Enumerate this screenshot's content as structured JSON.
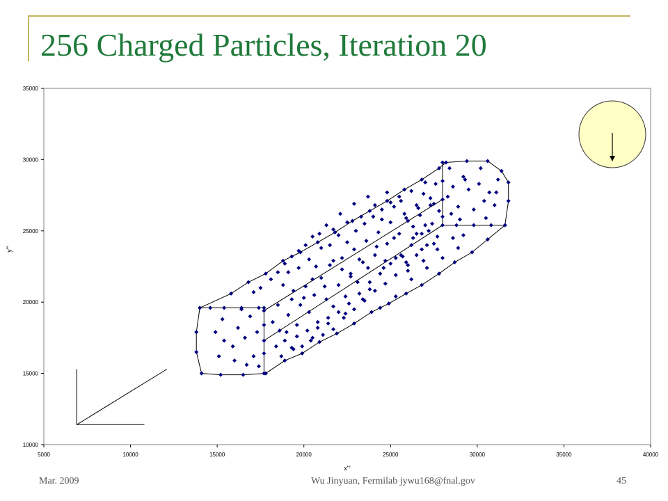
{
  "slide": {
    "title": "256 Charged Particles, Iteration 20",
    "footer_left": "Mar. 2009",
    "footer_center": "Wu Jinyuan, Fermilab jywu168@fnal.gov",
    "footer_right": "45"
  },
  "colors": {
    "title": "#1f7a3a",
    "rule": "#c5b35a",
    "marker": "#000080",
    "inset_fill": "#ffffc6"
  },
  "chart_data": {
    "type": "scatter",
    "xlabel": "x\"'",
    "ylabel": "y\"'",
    "xlim": [
      5000,
      40000
    ],
    "ylim": [
      10000,
      35000
    ],
    "xticks": [
      "5000",
      "10000",
      "15000",
      "20000",
      "25000",
      "30000",
      "35000",
      "40000"
    ],
    "yticks": [
      "10000",
      "15000",
      "20000",
      "25000",
      "30000",
      "35000"
    ],
    "grid": false,
    "legend": "none",
    "marker": "diamond",
    "series": [
      {
        "points": [
          [
            14000,
            19600
          ],
          [
            15800,
            20600
          ],
          [
            16800,
            21400
          ],
          [
            17800,
            22000
          ],
          [
            18800,
            22900
          ],
          [
            19800,
            23500
          ],
          [
            20800,
            24200
          ],
          [
            21800,
            24900
          ],
          [
            22800,
            25700
          ],
          [
            23800,
            26400
          ],
          [
            24800,
            27100
          ],
          [
            25800,
            27900
          ],
          [
            26800,
            28600
          ],
          [
            27800,
            29400
          ],
          [
            28200,
            29800
          ],
          [
            29400,
            29900
          ],
          [
            30600,
            29900
          ],
          [
            31400,
            29200
          ],
          [
            31800,
            28400
          ],
          [
            31800,
            27100
          ],
          [
            31600,
            25400
          ],
          [
            30600,
            24400
          ],
          [
            29700,
            23500
          ],
          [
            28700,
            22800
          ],
          [
            27800,
            22000
          ],
          [
            26800,
            21200
          ],
          [
            25900,
            20600
          ],
          [
            24900,
            19900
          ],
          [
            23900,
            19300
          ],
          [
            22900,
            18500
          ],
          [
            21900,
            17800
          ],
          [
            20900,
            17200
          ],
          [
            19900,
            16400
          ],
          [
            18900,
            15900
          ],
          [
            17800,
            15000
          ],
          [
            16500,
            14900
          ],
          [
            15200,
            14900
          ],
          [
            14100,
            15000
          ],
          [
            13800,
            16500
          ],
          [
            13800,
            17900
          ],
          [
            14000,
            19600
          ],
          [
            14600,
            19600
          ],
          [
            15400,
            19600
          ],
          [
            16400,
            19600
          ],
          [
            17400,
            19600
          ],
          [
            17700,
            19600
          ],
          [
            17700,
            15000
          ],
          [
            17700,
            16400
          ],
          [
            17700,
            17300
          ],
          [
            17700,
            18400
          ],
          [
            17700,
            19400
          ],
          [
            28000,
            29800
          ],
          [
            28000,
            28500
          ],
          [
            28000,
            27200
          ],
          [
            28000,
            26000
          ],
          [
            28000,
            25400
          ],
          [
            28800,
            25400
          ],
          [
            29800,
            25400
          ],
          [
            30800,
            25400
          ],
          [
            31600,
            25400
          ],
          [
            14900,
            17900
          ],
          [
            15300,
            18800
          ],
          [
            15900,
            16900
          ],
          [
            16200,
            18200
          ],
          [
            16600,
            17500
          ],
          [
            16900,
            19000
          ],
          [
            17100,
            16200
          ],
          [
            17300,
            17900
          ],
          [
            15100,
            16200
          ],
          [
            16700,
            15600
          ],
          [
            17400,
            15500
          ],
          [
            16000,
            15900
          ],
          [
            15400,
            17300
          ],
          [
            16400,
            19500
          ],
          [
            18400,
            16900
          ],
          [
            18600,
            18000
          ],
          [
            18900,
            17300
          ],
          [
            19100,
            19100
          ],
          [
            19300,
            20200
          ],
          [
            19600,
            18400
          ],
          [
            19800,
            19800
          ],
          [
            20100,
            21100
          ],
          [
            20300,
            19300
          ],
          [
            20600,
            20500
          ],
          [
            20800,
            18600
          ],
          [
            21000,
            21700
          ],
          [
            21300,
            20200
          ],
          [
            21500,
            22600
          ],
          [
            21700,
            19700
          ],
          [
            22000,
            21200
          ],
          [
            22200,
            23100
          ],
          [
            22400,
            20400
          ],
          [
            22700,
            22000
          ],
          [
            22900,
            23700
          ],
          [
            23100,
            21400
          ],
          [
            23400,
            22800
          ],
          [
            23600,
            24300
          ],
          [
            23800,
            20900
          ],
          [
            24100,
            23300
          ],
          [
            24300,
            24900
          ],
          [
            24600,
            22400
          ],
          [
            24800,
            24100
          ],
          [
            25000,
            25600
          ],
          [
            25300,
            23100
          ],
          [
            25500,
            24800
          ],
          [
            25800,
            26200
          ],
          [
            26000,
            22600
          ],
          [
            26300,
            24500
          ],
          [
            26500,
            26800
          ],
          [
            26800,
            23700
          ],
          [
            27000,
            25400
          ],
          [
            27300,
            27300
          ],
          [
            27500,
            24100
          ],
          [
            27800,
            26400
          ],
          [
            18200,
            18600
          ],
          [
            18500,
            19800
          ],
          [
            18800,
            21200
          ],
          [
            19100,
            22100
          ],
          [
            19400,
            20800
          ],
          [
            19700,
            22400
          ],
          [
            20000,
            20300
          ],
          [
            20300,
            23000
          ],
          [
            20500,
            21600
          ],
          [
            20700,
            22500
          ],
          [
            21000,
            23800
          ],
          [
            21200,
            21100
          ],
          [
            21500,
            24000
          ],
          [
            21700,
            22900
          ],
          [
            22000,
            24700
          ],
          [
            22200,
            22300
          ],
          [
            22500,
            24200
          ],
          [
            22700,
            21800
          ],
          [
            23000,
            25000
          ],
          [
            23200,
            23000
          ],
          [
            23500,
            25500
          ],
          [
            23700,
            22400
          ],
          [
            24000,
            26000
          ],
          [
            24200,
            23900
          ],
          [
            24500,
            26500
          ],
          [
            24700,
            22900
          ],
          [
            25000,
            27000
          ],
          [
            25200,
            24500
          ],
          [
            25500,
            27400
          ],
          [
            25700,
            23200
          ],
          [
            26000,
            25700
          ],
          [
            26200,
            27800
          ],
          [
            26500,
            24800
          ],
          [
            26700,
            26100
          ],
          [
            27000,
            28400
          ],
          [
            27200,
            25000
          ],
          [
            27500,
            26900
          ],
          [
            27700,
            24600
          ],
          [
            18700,
            16200
          ],
          [
            19000,
            17900
          ],
          [
            19300,
            16800
          ],
          [
            19600,
            17600
          ],
          [
            19900,
            16900
          ],
          [
            20200,
            18000
          ],
          [
            20500,
            17500
          ],
          [
            20800,
            18200
          ],
          [
            21100,
            17700
          ],
          [
            21400,
            18900
          ],
          [
            21700,
            18100
          ],
          [
            22000,
            19300
          ],
          [
            22300,
            18900
          ],
          [
            22600,
            19900
          ],
          [
            22900,
            19500
          ],
          [
            23200,
            20600
          ],
          [
            23500,
            20100
          ],
          [
            23800,
            21400
          ],
          [
            24100,
            20800
          ],
          [
            24400,
            22000
          ],
          [
            24700,
            21300
          ],
          [
            25000,
            22700
          ],
          [
            25300,
            21900
          ],
          [
            25600,
            23300
          ],
          [
            25900,
            22800
          ],
          [
            26200,
            24000
          ],
          [
            26500,
            23300
          ],
          [
            26800,
            24800
          ],
          [
            27100,
            24000
          ],
          [
            27400,
            25500
          ],
          [
            28300,
            27400
          ],
          [
            28600,
            28100
          ],
          [
            28900,
            26700
          ],
          [
            29200,
            28800
          ],
          [
            29500,
            27900
          ],
          [
            29800,
            26500
          ],
          [
            30100,
            28300
          ],
          [
            30400,
            27100
          ],
          [
            30700,
            27700
          ],
          [
            31000,
            26800
          ],
          [
            31200,
            28600
          ],
          [
            28500,
            26200
          ],
          [
            29000,
            25800
          ],
          [
            30500,
            25900
          ],
          [
            29300,
            28600
          ],
          [
            30200,
            29400
          ],
          [
            28400,
            29400
          ],
          [
            31100,
            27700
          ],
          [
            27600,
            28300
          ],
          [
            27300,
            26800
          ],
          [
            26900,
            27600
          ],
          [
            26600,
            26600
          ],
          [
            26300,
            25300
          ],
          [
            25900,
            25900
          ],
          [
            25600,
            27100
          ],
          [
            25200,
            26700
          ],
          [
            24800,
            27700
          ],
          [
            24500,
            25800
          ],
          [
            24100,
            26800
          ],
          [
            23700,
            27400
          ],
          [
            23300,
            26000
          ],
          [
            22900,
            26900
          ],
          [
            22500,
            25600
          ],
          [
            22100,
            26200
          ],
          [
            21700,
            25100
          ],
          [
            21300,
            25400
          ],
          [
            20900,
            24800
          ],
          [
            20500,
            24600
          ],
          [
            20100,
            24000
          ],
          [
            19700,
            23600
          ],
          [
            19300,
            23200
          ],
          [
            18900,
            22700
          ],
          [
            18500,
            22100
          ],
          [
            18100,
            21600
          ],
          [
            17500,
            21000
          ],
          [
            17100,
            20700
          ],
          [
            25300,
            20400
          ],
          [
            26200,
            21600
          ],
          [
            27100,
            22400
          ],
          [
            28000,
            23100
          ],
          [
            28900,
            23800
          ],
          [
            29200,
            24700
          ],
          [
            28600,
            24500
          ],
          [
            27700,
            23700
          ],
          [
            26900,
            22900
          ],
          [
            26000,
            22200
          ],
          [
            24400,
            19600
          ],
          [
            23400,
            20200
          ],
          [
            22400,
            19200
          ],
          [
            21400,
            18500
          ],
          [
            20400,
            17300
          ],
          [
            19400,
            16700
          ]
        ]
      }
    ],
    "outline": [
      [
        14000,
        19600
      ],
      [
        15800,
        20600
      ],
      [
        16800,
        21400
      ],
      [
        17800,
        22000
      ],
      [
        18800,
        22900
      ],
      [
        19800,
        23500
      ],
      [
        20800,
        24200
      ],
      [
        21800,
        24900
      ],
      [
        22800,
        25700
      ],
      [
        23800,
        26400
      ],
      [
        24800,
        27100
      ],
      [
        25800,
        27900
      ],
      [
        26800,
        28600
      ],
      [
        27800,
        29400
      ],
      [
        28200,
        29800
      ],
      [
        29400,
        29900
      ],
      [
        30600,
        29900
      ],
      [
        31400,
        29200
      ],
      [
        31800,
        28400
      ],
      [
        31800,
        27100
      ],
      [
        31600,
        25400
      ],
      [
        30600,
        24400
      ],
      [
        29700,
        23500
      ],
      [
        28700,
        22800
      ],
      [
        27800,
        22000
      ],
      [
        26800,
        21200
      ],
      [
        25900,
        20600
      ],
      [
        24900,
        19900
      ],
      [
        23900,
        19300
      ],
      [
        22900,
        18500
      ],
      [
        21900,
        17800
      ],
      [
        20900,
        17200
      ],
      [
        19900,
        16400
      ],
      [
        18900,
        15900
      ],
      [
        17800,
        15000
      ],
      [
        16500,
        14900
      ],
      [
        15200,
        14900
      ],
      [
        14100,
        15000
      ],
      [
        13800,
        16500
      ],
      [
        13800,
        17900
      ],
      [
        14000,
        19600
      ]
    ],
    "inner_lines": [
      [
        [
          14000,
          19600
        ],
        [
          17700,
          19600
        ],
        [
          17700,
          15000
        ]
      ],
      [
        [
          28000,
          29800
        ],
        [
          28000,
          25400
        ],
        [
          31600,
          25400
        ]
      ],
      [
        [
          17700,
          19400
        ],
        [
          28000,
          27200
        ]
      ],
      [
        [
          17700,
          17300
        ],
        [
          28000,
          25400
        ]
      ]
    ],
    "axes_glyph": [
      [
        [
          6900,
          15300
        ],
        [
          6900,
          11400
        ],
        [
          10800,
          11400
        ]
      ],
      [
        [
          6900,
          11400
        ],
        [
          12100,
          15300
        ]
      ]
    ]
  }
}
